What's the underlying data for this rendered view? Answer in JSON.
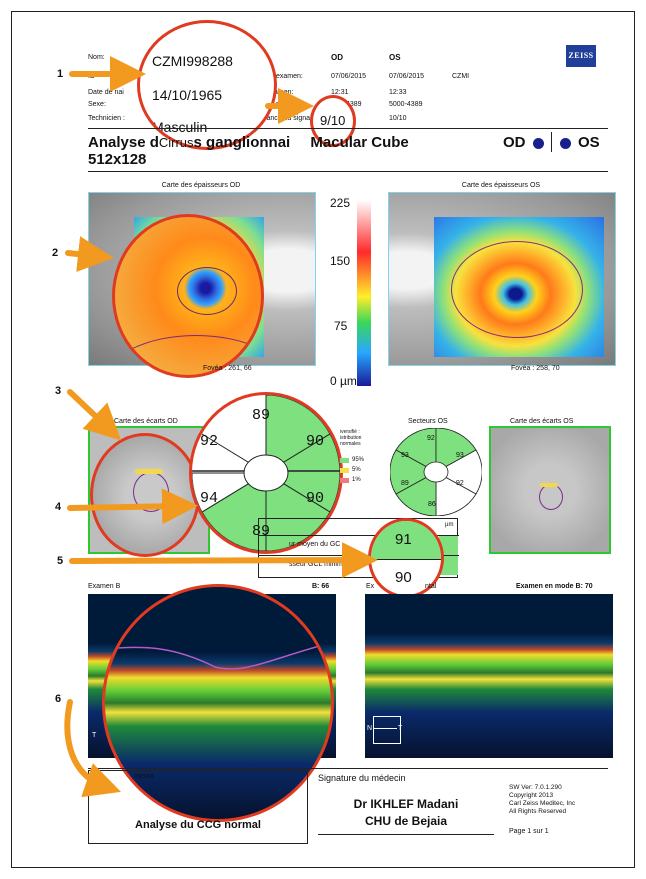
{
  "header": {
    "labels": {
      "nom": "Nom:",
      "id": "ID",
      "date_naissance": "Date de nai",
      "sexe": "Sexe:",
      "technicien": "Technicien :",
      "date_examen": "Date d'examen:",
      "heure_examen": "de l'examen:",
      "numero": "uméro d",
      "puissance": "uissance du signal"
    },
    "od_label": "OD",
    "os_label": "OS",
    "values_od": [
      "07/06/2015",
      "12:31",
      "4389"
    ],
    "values_os": [
      "07/06/2015",
      "12:33",
      "5000-4389",
      "10/10"
    ],
    "id_suffix": "CZMI",
    "zoom_name": "CZMI998288",
    "zoom_birth": "14/10/1965",
    "zoom_sex": "Masculin",
    "zoom_signal": "9/10",
    "brand": "ZEISS"
  },
  "title": {
    "line1_a": "Analyse d",
    "line1_b": "Cirrus",
    "line1_c": "s ganglionnai",
    "line1_d": "Macular Cube",
    "line2": "512x128",
    "od": "OD",
    "os": "OS"
  },
  "maps": {
    "od_title": "Carte des épaisseurs OD",
    "os_title": "Carte des épaisseurs OS",
    "scale_ticks": [
      "225",
      "150",
      "75",
      "0 µm"
    ],
    "fovea_od": "Fovéa : 261, 66",
    "fovea_os": "Fovéa : 258, 70"
  },
  "sectors": {
    "ecart_od_title": "Carte des écarts OD",
    "secteurs_os_title": "Secteurs OS",
    "ecart_os_title": "Carte des écarts OS",
    "zoom_values": [
      "89",
      "90",
      "90",
      "89",
      "94",
      "92"
    ],
    "os_values": [
      "92",
      "93",
      "92",
      "86",
      "89",
      "93"
    ],
    "legend_title": "iversifié : istribution normales",
    "legend_items": [
      "95%",
      "5%",
      "1%"
    ]
  },
  "gcl": {
    "unit": "µm",
    "row1_label": "ur moyen du GC",
    "row2_label": "sseur GCL minimum",
    "zoom_top": "91",
    "zoom_bottom": "90"
  },
  "bscan": {
    "od_title": "Examen B",
    "od_right": "B: 66",
    "os_left": "Ex",
    "os_mid": "ntal",
    "os_right_label": "Examen en mode B:",
    "os_right_value": "70",
    "letter_t": "T",
    "letter_n": "N",
    "letter_t2": "T"
  },
  "annotations": [
    "1",
    "2",
    "3",
    "4",
    "5",
    "6"
  ],
  "footer": {
    "comment_label": "C",
    "comment_suffix": "menta",
    "comment_text": "Analyse du CCG normal",
    "signature_label": "Signature du médecin",
    "doctor": "Dr IKHLEF Madani",
    "hospital": "CHU de Bejaia",
    "sw": "SW Ver: 7.0.1.290",
    "copyright": "Copyright 2013",
    "company": "Carl Zeiss Meditec, Inc",
    "rights": "All Rights Reserved",
    "page": "Page 1 sur 1"
  }
}
